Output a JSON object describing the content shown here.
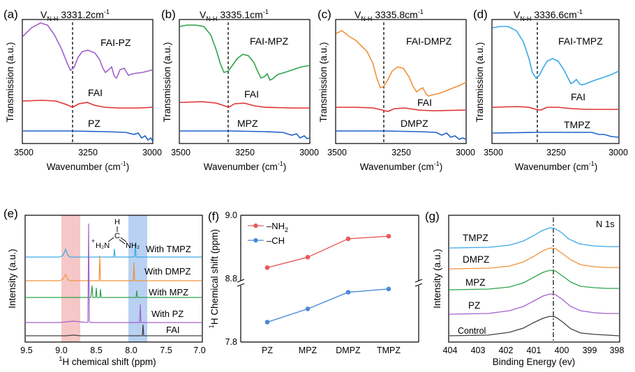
{
  "figure": {
    "panels": [
      {
        "id": "a",
        "letter": "(a)",
        "peak_prefix": "V",
        "peak_sub": "N-H",
        "peak_value": "3331.2cm",
        "peak_sup": "-1",
        "xlabel": "Wavenumber (cm",
        "xlabel_sup": "-1",
        "xlabel_end": ")",
        "ylabel": "Transmission (a.u.)",
        "ticks": [
          "3500",
          "3250",
          "3000"
        ],
        "labels": [
          "FAI-PZ",
          "FAI",
          "PZ"
        ],
        "colors": [
          "#a35fcc",
          "#e03030",
          "#1f60c8"
        ]
      },
      {
        "id": "b",
        "letter": "(b)",
        "peak_prefix": "V",
        "peak_sub": "N-H",
        "peak_value": "3335.1cm",
        "peak_sup": "-1",
        "xlabel": "Wavenumber (cm",
        "xlabel_sup": "-1",
        "xlabel_end": ")",
        "ylabel": "Transmission (a.u.)",
        "ticks": [
          "3500",
          "3250",
          "3000"
        ],
        "labels": [
          "FAI-MPZ",
          "FAI",
          "MPZ"
        ],
        "colors": [
          "#2ea34a",
          "#e03030",
          "#1f60c8"
        ]
      },
      {
        "id": "c",
        "letter": "(c)",
        "peak_prefix": "V",
        "peak_sub": "N-H",
        "peak_value": "3335.8cm",
        "peak_sup": "-1",
        "xlabel": "Wavenumber (cm",
        "xlabel_sup": "-1",
        "xlabel_end": ")",
        "ylabel": "Transmission (a.u.)",
        "ticks": [
          "3500",
          "3250",
          "3000"
        ],
        "labels": [
          "FAI-DMPZ",
          "FAI",
          "DMPZ"
        ],
        "colors": [
          "#f0923a",
          "#e03030",
          "#1f60c8"
        ]
      },
      {
        "id": "d",
        "letter": "(d)",
        "peak_prefix": "V",
        "peak_sub": "N-H",
        "peak_value": "3336.6cm",
        "peak_sup": "-1",
        "xlabel": "Wavenumber (cm",
        "xlabel_sup": "-1",
        "xlabel_end": ")",
        "ylabel": "Transmission (a.u.)",
        "ticks": [
          "3500",
          "3250",
          "3000"
        ],
        "labels": [
          "FAI-TMPZ",
          "FAI",
          "TMPZ"
        ],
        "colors": [
          "#3aa8e8",
          "#e03030",
          "#1f60c8"
        ]
      }
    ],
    "panel_e": {
      "letter": "(e)",
      "ylabel": "Intensity (a.u.)",
      "xlabel_sup": "1",
      "xlabel": "H chemical shift (ppm)",
      "ticks": [
        "9.5",
        "9.0",
        "8.5",
        "8.0",
        "7.5",
        "7.0"
      ],
      "labels": [
        "With TMPZ",
        "With DMPZ",
        "With MPZ",
        "With PZ",
        "FAI"
      ],
      "colors": [
        "#3aa8e8",
        "#f0923a",
        "#2ea34a",
        "#a35fcc",
        "#404040"
      ],
      "molecule": {
        "h": "H",
        "c": "C",
        "n_left": "H₂N",
        "n_plus": "+",
        "n_right": "NH₂"
      },
      "bands": {
        "red": "#f6c7c7",
        "blue": "#b9d1f2"
      }
    },
    "panel_f": {
      "letter": "(f)",
      "ylabel_sup": "1",
      "ylabel": "H Chemical shift (ppm)",
      "ticks_y": [
        "9.0",
        "8.8",
        "7.8"
      ],
      "categories": [
        "PZ",
        "MPZ",
        "DMPZ",
        "TMPZ"
      ],
      "legend": [
        {
          "pre": "–NH",
          "sub": "2",
          "color": "#e85a5a"
        },
        {
          "pre": "–CH",
          "sub": "",
          "color": "#4a8ad8"
        }
      ]
    },
    "panel_g": {
      "letter": "(g)",
      "ylabel": "Intensity (a.u.)",
      "xlabel": "Binding Energy (ev)",
      "annot": "N 1s",
      "ticks": [
        "404",
        "403",
        "402",
        "401",
        "400",
        "399",
        "398"
      ],
      "labels": [
        "TMPZ",
        "DMPZ",
        "MPZ",
        "PZ",
        "Control"
      ],
      "colors": [
        "#3aa8e8",
        "#f0923a",
        "#2ea34a",
        "#a35fcc",
        "#404040"
      ]
    }
  },
  "chart_data": [
    {
      "type": "line",
      "panel": "f",
      "categories": [
        "PZ",
        "MPZ",
        "DMPZ",
        "TMPZ"
      ],
      "series": [
        {
          "name": "–NH2",
          "values": [
            8.8,
            8.84,
            8.91,
            8.92
          ]
        },
        {
          "name": "–CH",
          "values": [
            7.86,
            7.9,
            7.95,
            7.96
          ]
        }
      ],
      "ylim": [
        7.8,
        9.0
      ],
      "axis_break": [
        7.97,
        8.75
      ],
      "ylabel": "1H Chemical shift (ppm)",
      "xlabel": ""
    },
    {
      "type": "line",
      "panel": "g",
      "x_ticks": [
        404,
        403,
        402,
        401,
        400,
        399,
        398
      ],
      "series": [
        "TMPZ",
        "DMPZ",
        "MPZ",
        "PZ",
        "Control"
      ],
      "peak_marker": 400.4,
      "xlabel": "Binding Energy (ev)",
      "ylabel": "Intensity (a.u.)"
    }
  ]
}
